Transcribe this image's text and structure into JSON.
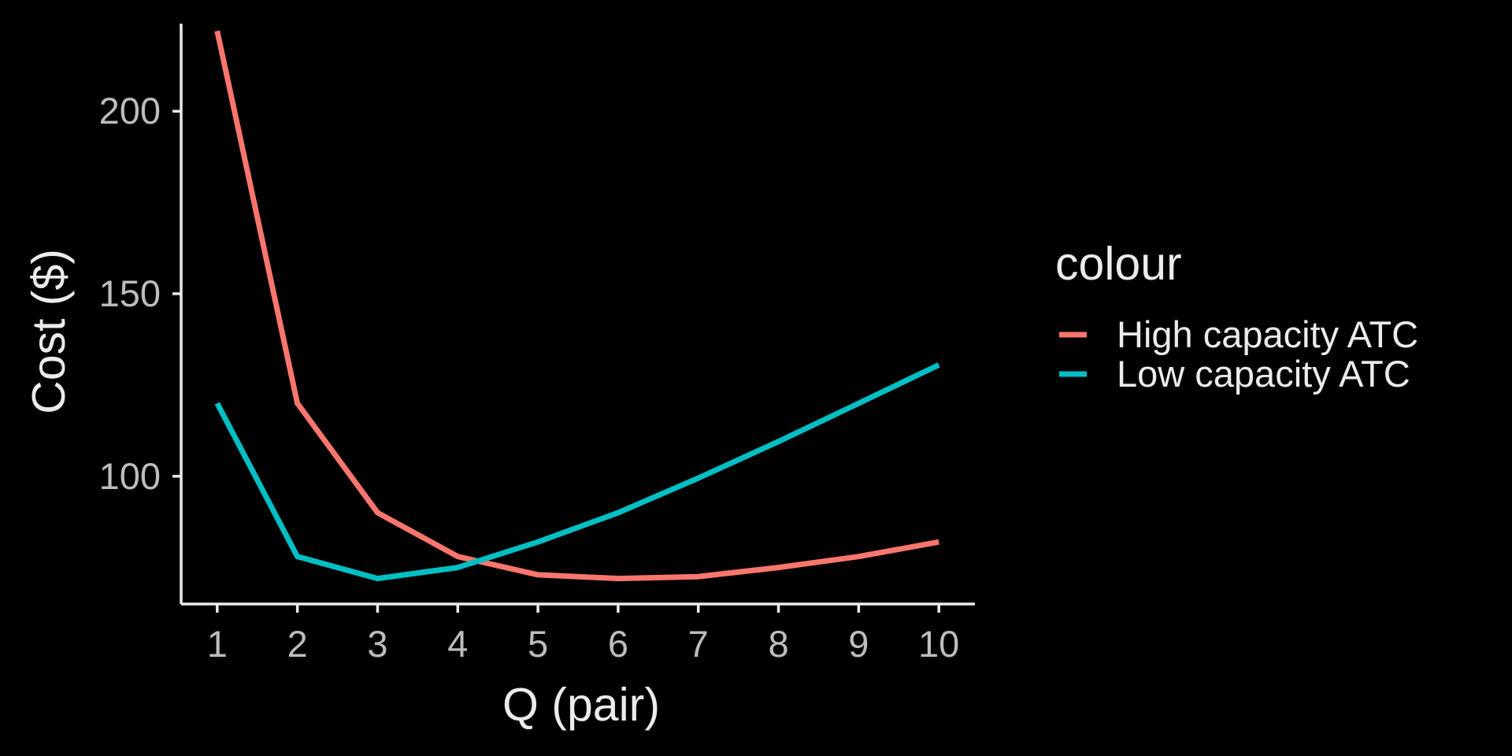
{
  "chart_data": {
    "type": "line",
    "title": "",
    "xlabel": "Q (pair)",
    "ylabel": "Cost ($)",
    "x": [
      1,
      2,
      3,
      4,
      5,
      6,
      7,
      8,
      9,
      10
    ],
    "x_ticks": [
      "1",
      "2",
      "3",
      "4",
      "5",
      "6",
      "7",
      "8",
      "9",
      "10"
    ],
    "y_ticks": [
      "100",
      "150",
      "200"
    ],
    "xlim": [
      0.55,
      10.45
    ],
    "ylim": [
      65,
      224
    ],
    "grid": false,
    "legend": {
      "title": "colour",
      "position": "right"
    },
    "series": [
      {
        "name": "High capacity ATC",
        "color": "#F8766D",
        "values": [
          222,
          120,
          90,
          78,
          73,
          72,
          72.5,
          75,
          78,
          82
        ]
      },
      {
        "name": "Low capacity ATC",
        "color": "#00BFC4",
        "values": [
          120,
          78,
          72,
          75,
          82,
          90,
          99.5,
          109.5,
          120,
          130.5
        ]
      }
    ]
  }
}
